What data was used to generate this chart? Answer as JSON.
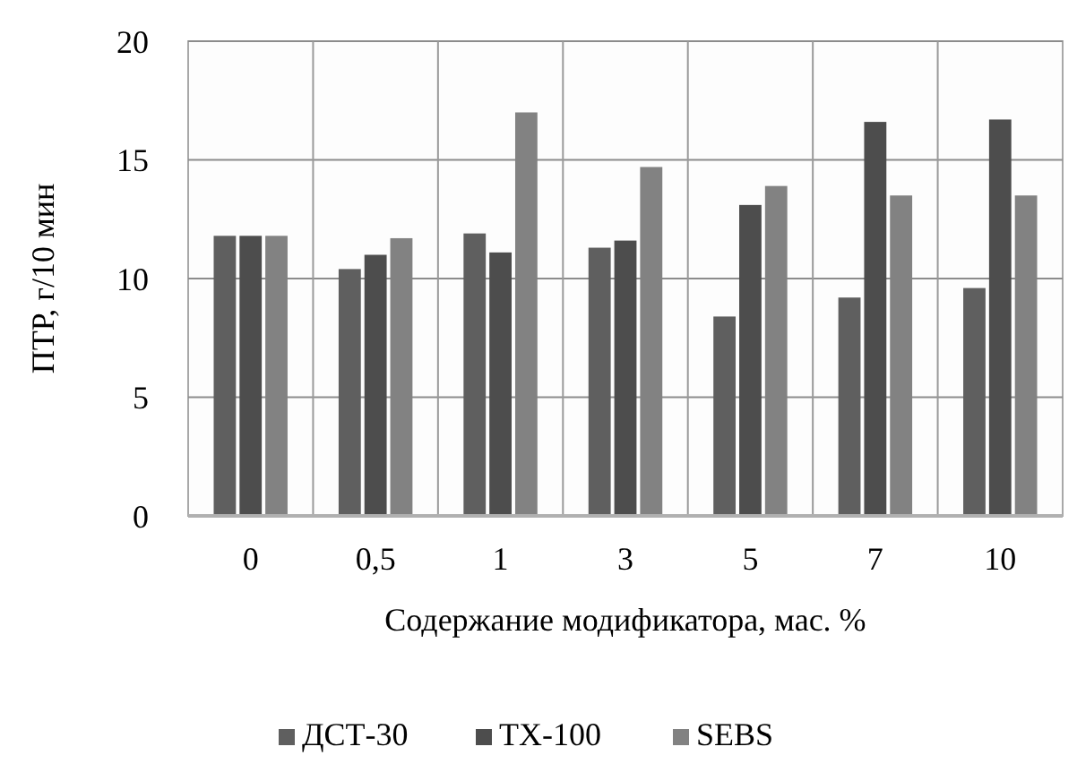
{
  "chart_data": {
    "type": "bar",
    "xlabel": "Содержание модификатора, мас. %",
    "ylabel": "ПТР, г/10 мин",
    "categories": [
      "0",
      "0,5",
      "1",
      "3",
      "5",
      "7",
      "10"
    ],
    "series": [
      {
        "name": "ДСТ-30",
        "color": "#5f5f5f",
        "values": [
          11.8,
          10.4,
          11.9,
          11.3,
          8.4,
          9.2,
          9.6
        ]
      },
      {
        "name": "TX-100",
        "color": "#4d4d4d",
        "values": [
          11.8,
          11.0,
          11.1,
          11.6,
          13.1,
          16.6,
          16.7
        ]
      },
      {
        "name": "SEBS",
        "color": "#828282",
        "values": [
          11.8,
          11.7,
          17.0,
          14.7,
          13.9,
          13.5,
          13.5
        ]
      }
    ],
    "ylim": [
      0,
      20
    ],
    "yticks": [
      0,
      5,
      10,
      15,
      20
    ],
    "grid": true,
    "legend": "bottom"
  }
}
